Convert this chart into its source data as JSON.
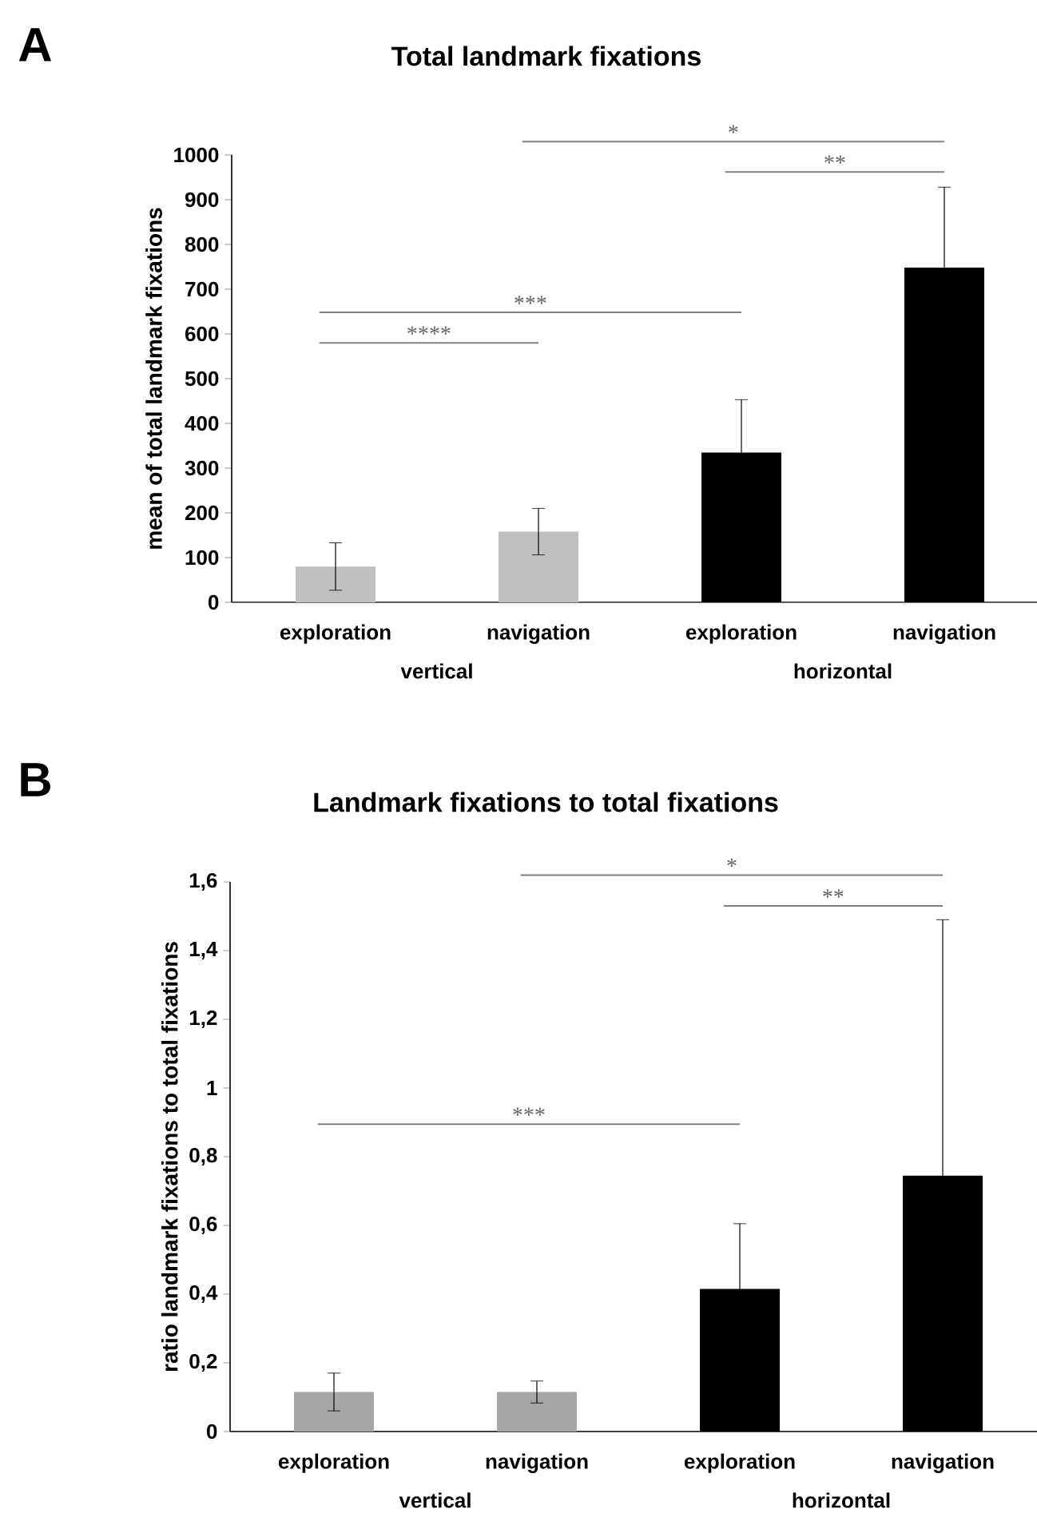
{
  "chart_data": [
    {
      "type": "bar",
      "title": "Total landmark fixations",
      "ylabel": "mean of total landmark fixations",
      "categories": [
        "exploration",
        "navigation",
        "exploration",
        "navigation"
      ],
      "values": [
        80,
        158,
        335,
        748
      ],
      "errors": [
        53,
        52,
        118,
        180
      ],
      "colors": [
        "#c0c0c0",
        "#c0c0c0",
        "#000000",
        "#000000"
      ],
      "grid": false,
      "ylim": [
        0,
        1000
      ],
      "yticks": [
        0,
        100,
        200,
        300,
        400,
        500,
        600,
        700,
        800,
        900,
        1000
      ],
      "annotations": [
        "A",
        "vertical",
        "horizontal",
        "****",
        "***",
        "**",
        "*"
      ]
    },
    {
      "type": "bar",
      "title": "Landmark fixations to total fixations",
      "ylabel": "ratio landmark fixations to total fixations",
      "categories": [
        "exploration",
        "navigation",
        "exploration",
        "navigation"
      ],
      "values": [
        0.115,
        0.115,
        0.415,
        0.745
      ],
      "errors": [
        0.055,
        0.032,
        0.19,
        [
          0.745,
          1.49
        ]
      ],
      "grid": false,
      "colors": [
        "#a6a6a6",
        "#a6a6a6",
        "#000000",
        "#000000"
      ],
      "ylim": [
        0,
        1.6
      ],
      "yticks": [
        0,
        {
          "value": 0.2,
          "label": "0,2"
        },
        {
          "value": 0.4,
          "label": "0,4"
        },
        {
          "value": 0.6,
          "label": "0,6"
        },
        {
          "value": 0.8,
          "label": "0,8"
        },
        1,
        {
          "value": 1.2,
          "label": "1,2"
        },
        {
          "value": 1.4,
          "label": "1,4"
        },
        {
          "value": 1.6,
          "label": "1,6"
        }
      ],
      "annotations": [
        "B",
        "vertical",
        "horizontal",
        "***",
        "**",
        "*"
      ]
    }
  ]
}
